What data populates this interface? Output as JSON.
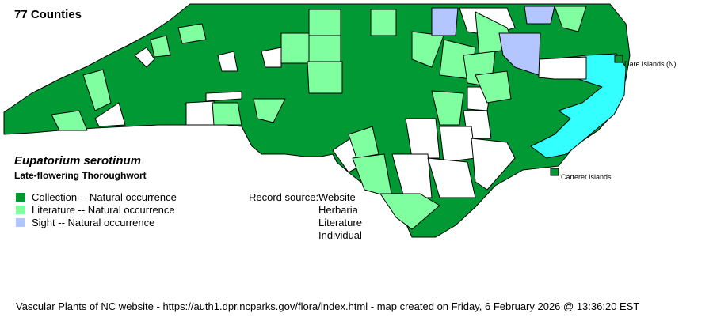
{
  "header": {
    "county_count": "77 Counties"
  },
  "species": {
    "scientific_name": "Eupatorium serotinum",
    "common_name": "Late-flowering Thoroughwort"
  },
  "legend": [
    {
      "label": "Collection -- Natural occurrence",
      "color": "#009933"
    },
    {
      "label": "Literature -- Natural occurrence",
      "color": "#80ffa0"
    },
    {
      "label": "Sight -- Natural occurrence",
      "color": "#b3c6ff"
    }
  ],
  "record_source": {
    "label": "Record source:",
    "values": [
      "Website",
      "Herbaria",
      "Literature",
      "Individual"
    ]
  },
  "map": {
    "water_color": "#33ffff",
    "no_record_color": "#ffffff",
    "island_labels": [
      "Dare Islands (N)",
      "Carteret Islands"
    ]
  },
  "footer": "Vascular Plants of NC website - https://auth1.dpr.ncparks.gov/flora/index.html - map created on Friday, 6 February 2026 @ 13:36:20 EST"
}
